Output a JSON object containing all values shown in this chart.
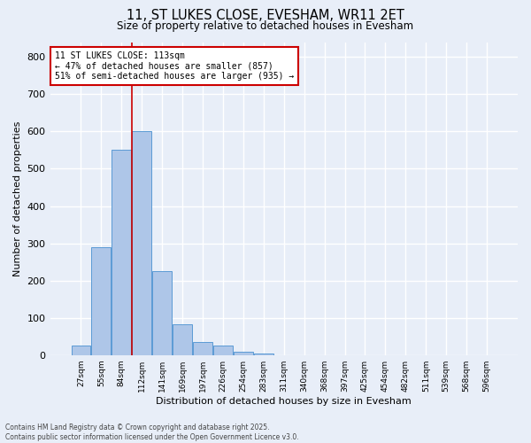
{
  "title_line1": "11, ST LUKES CLOSE, EVESHAM, WR11 2ET",
  "title_line2": "Size of property relative to detached houses in Evesham",
  "xlabel": "Distribution of detached houses by size in Evesham",
  "ylabel": "Number of detached properties",
  "categories": [
    "27sqm",
    "55sqm",
    "84sqm",
    "112sqm",
    "141sqm",
    "169sqm",
    "197sqm",
    "226sqm",
    "254sqm",
    "283sqm",
    "311sqm",
    "340sqm",
    "368sqm",
    "397sqm",
    "425sqm",
    "454sqm",
    "482sqm",
    "511sqm",
    "539sqm",
    "568sqm",
    "596sqm"
  ],
  "values": [
    25,
    290,
    550,
    600,
    225,
    82,
    35,
    25,
    10,
    5,
    0,
    0,
    0,
    0,
    0,
    0,
    0,
    0,
    0,
    0,
    0
  ],
  "bar_color": "#aec6e8",
  "bar_edge_color": "#5b9bd5",
  "vertical_line_color": "#cc0000",
  "annotation_text": "11 ST LUKES CLOSE: 113sqm\n← 47% of detached houses are smaller (857)\n51% of semi-detached houses are larger (935) →",
  "annotation_box_color": "#cc0000",
  "ylim": [
    0,
    840
  ],
  "yticks": [
    0,
    100,
    200,
    300,
    400,
    500,
    600,
    700,
    800
  ],
  "background_color": "#e8eef8",
  "grid_color": "#ffffff",
  "footer_line1": "Contains HM Land Registry data © Crown copyright and database right 2025.",
  "footer_line2": "Contains public sector information licensed under the Open Government Licence v3.0."
}
